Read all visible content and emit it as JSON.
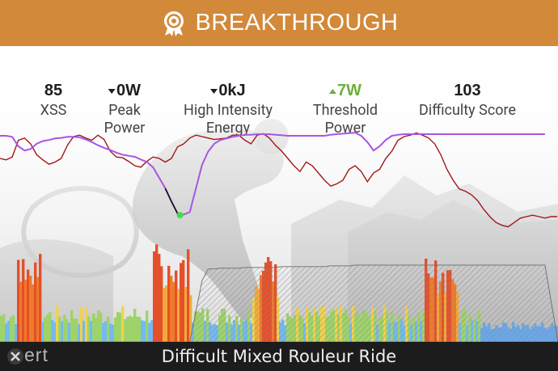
{
  "banner": {
    "title": "BREAKTHROUGH",
    "icon": "award-ribbon-icon",
    "background": "#d2893a"
  },
  "stats": [
    {
      "value": "85",
      "label_lines": [
        "XSS"
      ],
      "trend": null
    },
    {
      "value": "0W",
      "label_lines": [
        "Peak",
        "Power"
      ],
      "trend": "down"
    },
    {
      "value": "0kJ",
      "label_lines": [
        "High Intensity",
        "Energy"
      ],
      "trend": "down"
    },
    {
      "value": "7W",
      "label_lines": [
        "Threshold",
        "Power"
      ],
      "trend": "up",
      "color": "#6db03a"
    },
    {
      "value": "103",
      "label_lines": [
        "Difficulty Score"
      ],
      "trend": null
    }
  ],
  "chart_data": {
    "type": "area",
    "series": [
      {
        "color": "#a01818",
        "values": [
          230,
          228,
          232,
          255,
          258,
          250,
          235,
          228,
          222,
          225,
          230,
          248,
          260,
          262,
          258,
          255,
          262,
          256,
          240,
          232,
          231,
          226,
          220,
          218,
          226,
          232,
          230,
          225,
          230,
          246,
          250,
          258,
          262,
          260,
          258,
          256,
          257,
          258,
          262,
          262,
          255,
          250,
          262,
          264,
          258,
          248,
          240,
          230,
          220,
          212,
          225,
          220,
          210,
          200,
          192,
          195,
          200,
          215,
          220,
          212,
          198,
          210,
          215,
          230,
          240,
          255,
          260,
          262,
          265,
          262,
          258,
          250,
          235,
          215,
          200,
          188,
          185,
          180,
          172,
          160,
          150,
          142,
          138,
          136,
          142,
          148,
          150,
          152,
          150,
          148,
          150,
          150
        ]
      },
      {
        "color": "#a855e6",
        "values": [
          300,
          300,
          298,
          280,
          272,
          275,
          285,
          290,
          292,
          295,
          296,
          298,
          298,
          297,
          293,
          288,
          282,
          277,
          273,
          268,
          264,
          262,
          260,
          255,
          250,
          240,
          220,
          200,
          175,
          152,
          150,
          155,
          200,
          245,
          270,
          285,
          292,
          295,
          298,
          300,
          302,
          302,
          303,
          303,
          303,
          302,
          301,
          300,
          300,
          300,
          300,
          300,
          300,
          300,
          302,
          303,
          304,
          305,
          306,
          300,
          288,
          272,
          280,
          292,
          300,
          302,
          303,
          303,
          303,
          303,
          303,
          303,
          303,
          303,
          303,
          303,
          303,
          303,
          303,
          303,
          303,
          303,
          303,
          303,
          303,
          303,
          303,
          303,
          303,
          303
        ]
      },
      {
        "color": "#9a9a9a",
        "values": [
          0,
          0,
          0,
          0,
          0,
          0,
          0,
          0,
          0,
          0,
          0,
          0,
          0,
          0,
          0,
          0,
          0,
          0,
          0,
          0,
          0,
          0,
          0,
          0,
          0,
          0,
          0,
          0,
          0,
          0,
          0,
          0,
          40,
          80,
          95,
          95,
          96,
          96,
          96,
          96,
          97,
          97,
          97,
          97,
          97,
          97,
          98,
          98,
          98,
          98,
          98,
          98,
          98,
          98,
          99,
          99,
          99,
          99,
          100,
          100,
          100,
          100,
          100,
          100,
          100,
          100,
          100,
          100,
          100,
          100,
          100,
          100,
          100,
          100,
          100,
          100,
          100,
          100,
          100,
          100,
          100,
          100,
          100,
          100,
          100,
          100,
          100,
          100,
          100,
          100
        ]
      }
    ]
  },
  "footer": {
    "workout_name": "Difficult Mixed Rouleur Ride",
    "logo": "xert-logo"
  },
  "colors": {
    "accent": "#d2893a",
    "footer_bg": "#1c1c1c",
    "power_line": "#a01818",
    "mpa_line": "#a855e6",
    "threshold_green": "#6db03a"
  }
}
